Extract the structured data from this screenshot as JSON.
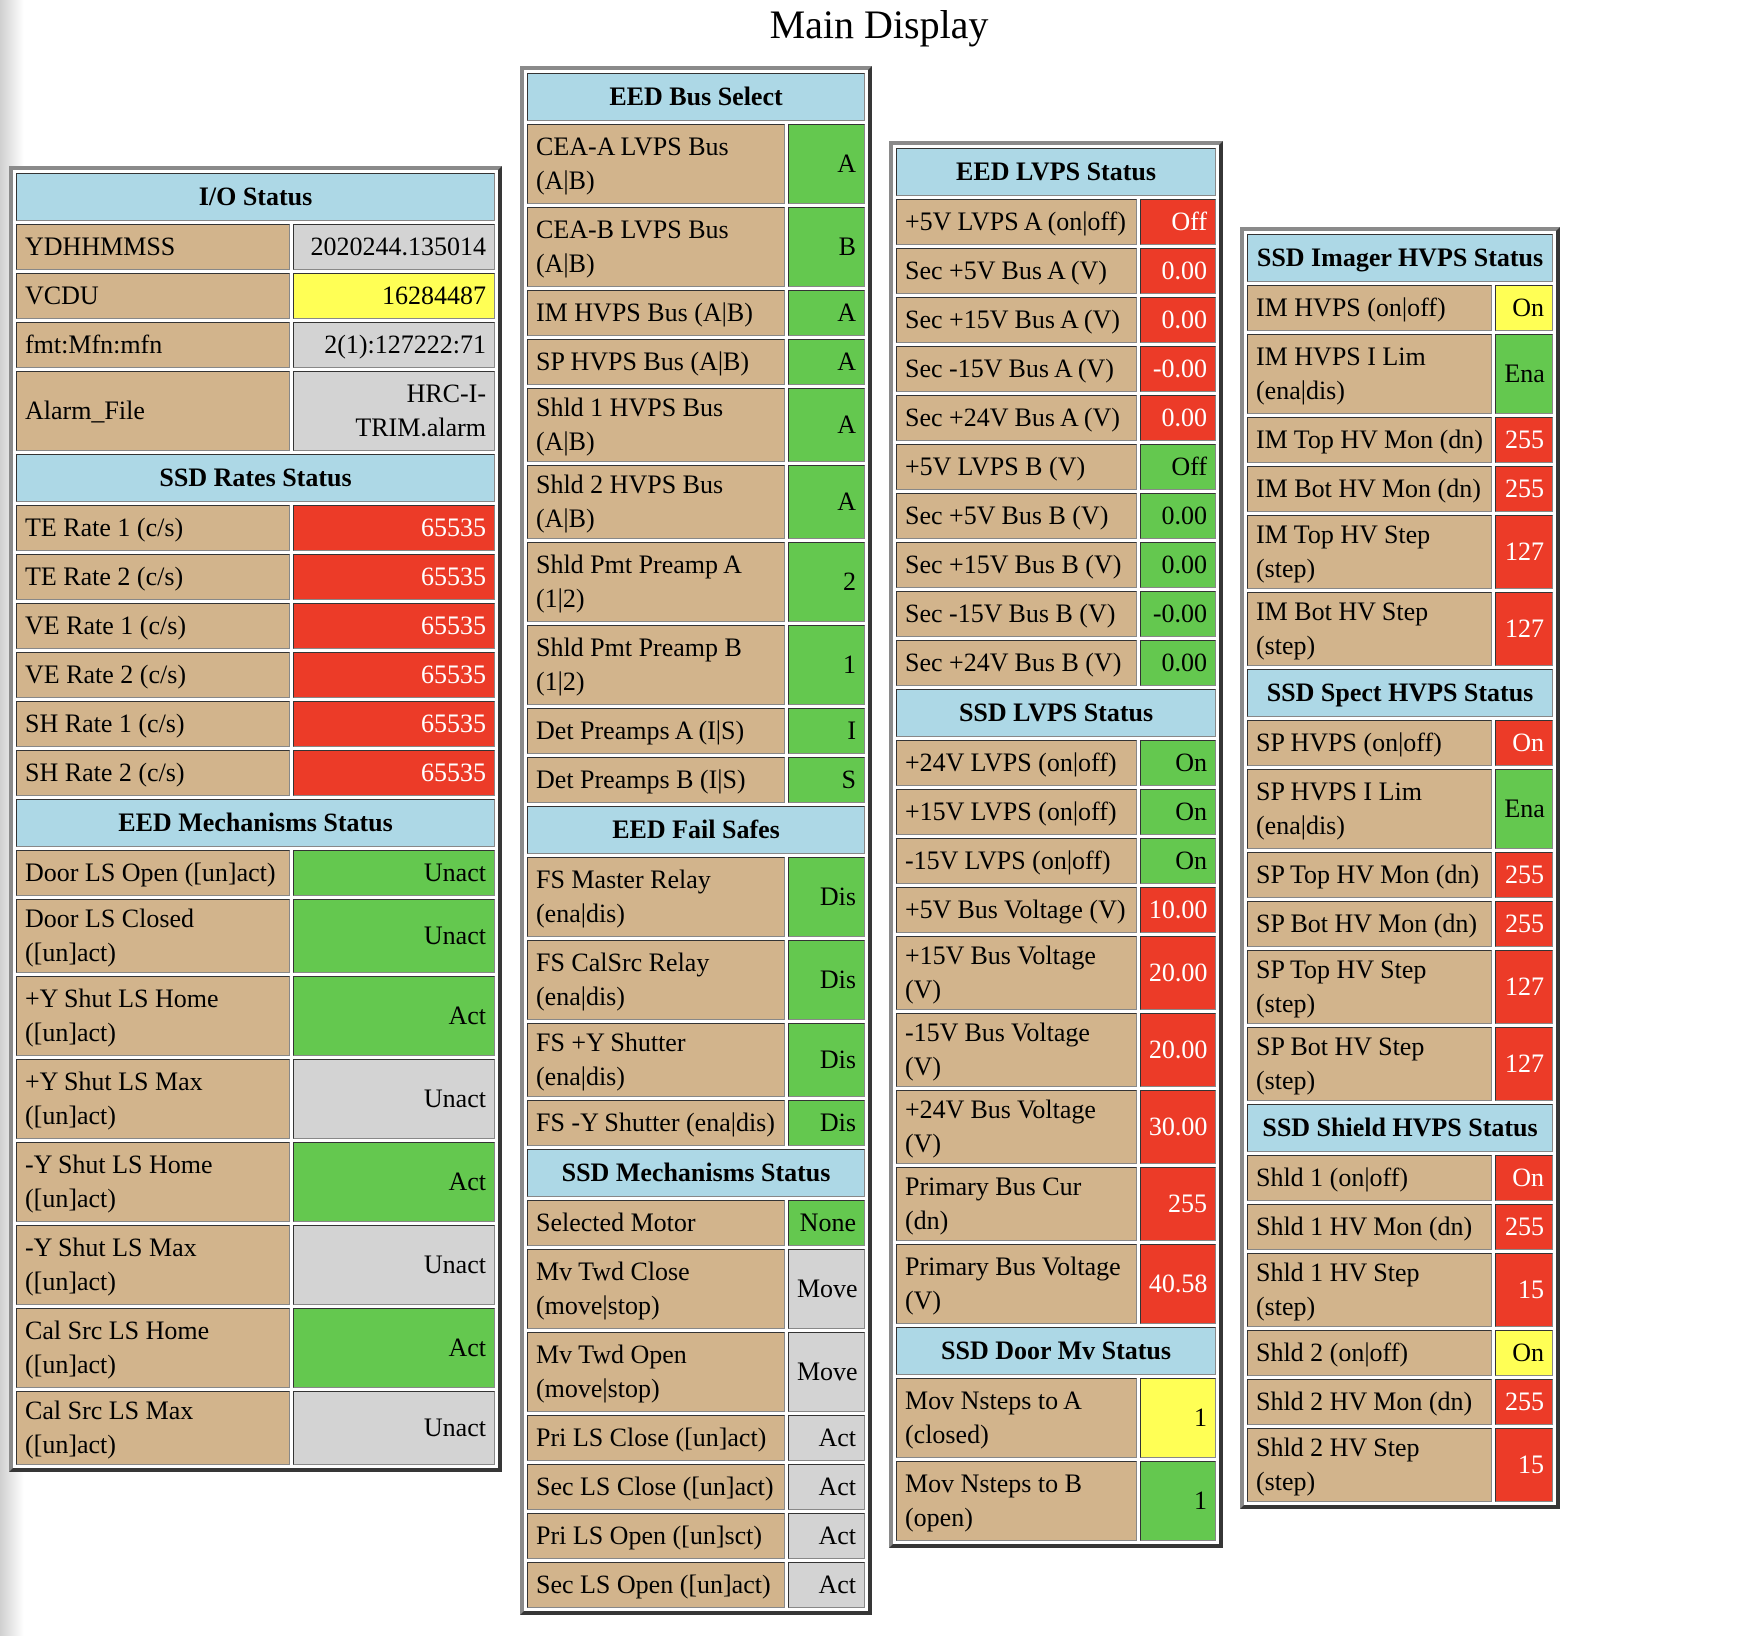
{
  "page_title": "Main Display",
  "colors": {
    "header_bg": "#add8e6",
    "label_bg": "#d2b48c",
    "gray": "#d3d3d3",
    "yellow": "#ffff55",
    "red": "#ec3b28",
    "green": "#64c84f"
  },
  "panels": [
    {
      "id": "p1",
      "sections": [
        {
          "title": "I/O Status",
          "rows": [
            {
              "label": "YDHHMMSS",
              "value": "2020244.135014",
              "color": "gray"
            },
            {
              "label": "VCDU",
              "value": "16284487",
              "color": "yellow"
            },
            {
              "label": "fmt:Mfn:mfn",
              "value": "2(1):127222:71",
              "color": "gray"
            },
            {
              "label": "Alarm_File",
              "value": "HRC-I-TRIM.alarm",
              "color": "gray",
              "tall": true
            }
          ]
        },
        {
          "title": "SSD Rates Status",
          "rows": [
            {
              "label": "TE Rate 1 (c/s)",
              "value": "65535",
              "color": "red"
            },
            {
              "label": "TE Rate 2 (c/s)",
              "value": "65535",
              "color": "red"
            },
            {
              "label": "VE Rate 1 (c/s)",
              "value": "65535",
              "color": "red"
            },
            {
              "label": "VE Rate 2 (c/s)",
              "value": "65535",
              "color": "red"
            },
            {
              "label": "SH Rate 1 (c/s)",
              "value": "65535",
              "color": "red"
            },
            {
              "label": "SH Rate 2 (c/s)",
              "value": "65535",
              "color": "red"
            }
          ]
        },
        {
          "title": "EED Mechanisms Status",
          "rows": [
            {
              "label": "Door LS Open ([un]act)",
              "value": "Unact",
              "color": "green"
            },
            {
              "label": "Door LS Closed ([un]act)",
              "value": "Unact",
              "color": "green"
            },
            {
              "label": "+Y Shut LS Home ([un]act)",
              "value": "Act",
              "color": "green",
              "tall": true
            },
            {
              "label": "+Y Shut LS Max ([un]act)",
              "value": "Unact",
              "color": "gray",
              "tall": true
            },
            {
              "label": "-Y Shut LS Home ([un]act)",
              "value": "Act",
              "color": "green",
              "tall": true
            },
            {
              "label": "-Y Shut LS Max ([un]act)",
              "value": "Unact",
              "color": "gray",
              "tall": true
            },
            {
              "label": "Cal Src LS Home ([un]act)",
              "value": "Act",
              "color": "green",
              "tall": true
            },
            {
              "label": "Cal Src LS Max ([un]act)",
              "value": "Unact",
              "color": "gray"
            }
          ]
        }
      ]
    },
    {
      "id": "p2",
      "sections": [
        {
          "title": "EED Bus Select",
          "rows": [
            {
              "label": "CEA-A LVPS Bus (A|B)",
              "value": "A",
              "color": "green",
              "tall": true
            },
            {
              "label": "CEA-B LVPS Bus (A|B)",
              "value": "B",
              "color": "green",
              "tall": true
            },
            {
              "label": "IM HVPS Bus (A|B)",
              "value": "A",
              "color": "green"
            },
            {
              "label": "SP HVPS Bus (A|B)",
              "value": "A",
              "color": "green"
            },
            {
              "label": "Shld 1 HVPS Bus (A|B)",
              "value": "A",
              "color": "green"
            },
            {
              "label": "Shld 2 HVPS Bus (A|B)",
              "value": "A",
              "color": "green"
            },
            {
              "label": "Shld Pmt Preamp A (1|2)",
              "value": "2",
              "color": "green",
              "tall": true
            },
            {
              "label": "Shld Pmt Preamp B (1|2)",
              "value": "1",
              "color": "green",
              "tall": true
            },
            {
              "label": "Det Preamps A (I|S)",
              "value": "I",
              "color": "green"
            },
            {
              "label": "Det Preamps B (I|S)",
              "value": "S",
              "color": "green"
            }
          ]
        },
        {
          "title": "EED Fail Safes",
          "rows": [
            {
              "label": "FS Master Relay (ena|dis)",
              "value": "Dis",
              "color": "green",
              "tall": true
            },
            {
              "label": "FS CalSrc Relay (ena|dis)",
              "value": "Dis",
              "color": "green",
              "tall": true
            },
            {
              "label": "FS +Y Shutter (ena|dis)",
              "value": "Dis",
              "color": "green"
            },
            {
              "label": "FS -Y Shutter (ena|dis)",
              "value": "Dis",
              "color": "green"
            }
          ]
        },
        {
          "title": "SSD Mechanisms Status",
          "rows": [
            {
              "label": "Selected Motor",
              "value": "None",
              "color": "green"
            },
            {
              "label": "Mv Twd Close (move|stop)",
              "value": "Move",
              "color": "gray",
              "tall": true
            },
            {
              "label": "Mv Twd Open (move|stop)",
              "value": "Move",
              "color": "gray",
              "tall": true
            },
            {
              "label": "Pri LS Close ([un]act)",
              "value": "Act",
              "color": "gray"
            },
            {
              "label": "Sec LS Close ([un]act)",
              "value": "Act",
              "color": "gray"
            },
            {
              "label": "Pri LS Open ([un]sct)",
              "value": "Act",
              "color": "gray"
            },
            {
              "label": "Sec LS Open ([un]act)",
              "value": "Act",
              "color": "gray"
            }
          ]
        }
      ]
    },
    {
      "id": "p3",
      "sections": [
        {
          "title": "EED LVPS Status",
          "rows": [
            {
              "label": "+5V LVPS A (on|off)",
              "value": "Off",
              "color": "red"
            },
            {
              "label": "Sec +5V Bus A (V)",
              "value": "0.00",
              "color": "red"
            },
            {
              "label": "Sec +15V Bus A (V)",
              "value": "0.00",
              "color": "red"
            },
            {
              "label": "Sec -15V Bus A (V)",
              "value": "-0.00",
              "color": "red"
            },
            {
              "label": "Sec +24V Bus A (V)",
              "value": "0.00",
              "color": "red"
            },
            {
              "label": "+5V LVPS B (V)",
              "value": "Off",
              "color": "green"
            },
            {
              "label": "Sec +5V Bus B (V)",
              "value": "0.00",
              "color": "green"
            },
            {
              "label": "Sec +15V Bus B (V)",
              "value": "0.00",
              "color": "green"
            },
            {
              "label": "Sec -15V Bus B (V)",
              "value": "-0.00",
              "color": "green"
            },
            {
              "label": "Sec +24V Bus B (V)",
              "value": "0.00",
              "color": "green"
            }
          ]
        },
        {
          "title": "SSD LVPS Status",
          "rows": [
            {
              "label": "+24V LVPS (on|off)",
              "value": "On",
              "color": "green"
            },
            {
              "label": "+15V LVPS (on|off)",
              "value": "On",
              "color": "green"
            },
            {
              "label": "-15V LVPS (on|off)",
              "value": "On",
              "color": "green"
            },
            {
              "label": "+5V Bus Voltage (V)",
              "value": "10.00",
              "color": "red"
            },
            {
              "label": "+15V Bus Voltage (V)",
              "value": "20.00",
              "color": "red"
            },
            {
              "label": "-15V Bus Voltage (V)",
              "value": "20.00",
              "color": "red"
            },
            {
              "label": "+24V Bus Voltage (V)",
              "value": "30.00",
              "color": "red"
            },
            {
              "label": "Primary Bus Cur (dn)",
              "value": "255",
              "color": "red"
            },
            {
              "label": "Primary Bus Voltage (V)",
              "value": "40.58",
              "color": "red",
              "tall": true
            }
          ]
        },
        {
          "title": "SSD Door Mv Status",
          "rows": [
            {
              "label": "Mov Nsteps to A (closed)",
              "value": "1",
              "color": "yellow",
              "tall": true
            },
            {
              "label": "Mov Nsteps to B (open)",
              "value": "1",
              "color": "green",
              "tall": true
            }
          ]
        }
      ]
    },
    {
      "id": "p4",
      "sections": [
        {
          "title": "SSD Imager HVPS Status",
          "rows": [
            {
              "label": "IM HVPS (on|off)",
              "value": "On",
              "color": "yellow"
            },
            {
              "label": "IM HVPS I Lim (ena|dis)",
              "value": "Ena",
              "color": "green",
              "tall": true
            },
            {
              "label": "IM Top HV Mon (dn)",
              "value": "255",
              "color": "red"
            },
            {
              "label": "IM Bot HV Mon (dn)",
              "value": "255",
              "color": "red"
            },
            {
              "label": "IM Top HV Step (step)",
              "value": "127",
              "color": "red"
            },
            {
              "label": "IM Bot HV Step (step)",
              "value": "127",
              "color": "red"
            }
          ]
        },
        {
          "title": "SSD Spect HVPS Status",
          "rows": [
            {
              "label": "SP HVPS (on|off)",
              "value": "On",
              "color": "red"
            },
            {
              "label": "SP HVPS I Lim (ena|dis)",
              "value": "Ena",
              "color": "green",
              "tall": true
            },
            {
              "label": "SP Top HV Mon (dn)",
              "value": "255",
              "color": "red"
            },
            {
              "label": "SP Bot HV Mon (dn)",
              "value": "255",
              "color": "red"
            },
            {
              "label": "SP Top HV Step (step)",
              "value": "127",
              "color": "red"
            },
            {
              "label": "SP Bot HV Step (step)",
              "value": "127",
              "color": "red"
            }
          ]
        },
        {
          "title": "SSD Shield HVPS Status",
          "rows": [
            {
              "label": "Shld 1 (on|off)",
              "value": "On",
              "color": "red"
            },
            {
              "label": "Shld 1 HV Mon (dn)",
              "value": "255",
              "color": "red"
            },
            {
              "label": "Shld 1 HV Step (step)",
              "value": "15",
              "color": "red"
            },
            {
              "label": "Shld 2 (on|off)",
              "value": "On",
              "color": "yellow"
            },
            {
              "label": "Shld 2 HV Mon (dn)",
              "value": "255",
              "color": "red"
            },
            {
              "label": "Shld 2 HV Step (step)",
              "value": "15",
              "color": "red"
            }
          ]
        }
      ]
    }
  ]
}
